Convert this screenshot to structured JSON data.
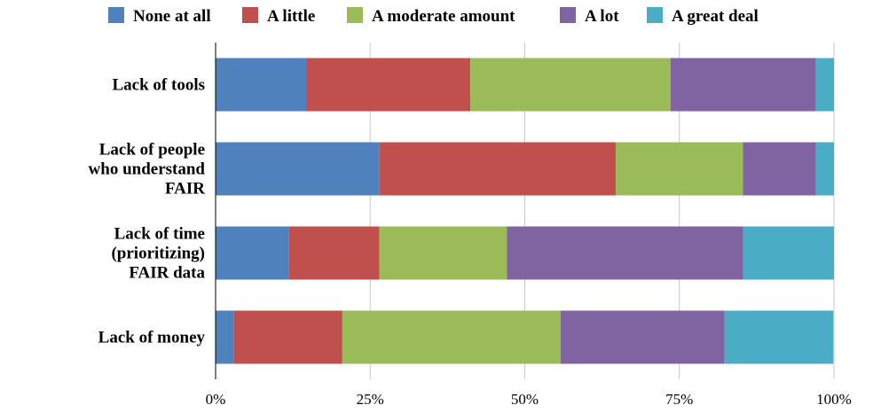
{
  "chart_data": {
    "type": "bar",
    "orientation": "horizontal",
    "stacked": true,
    "percent_stacked": true,
    "categories": [
      [
        "Lack of tools"
      ],
      [
        "Lack of people",
        "who understand",
        "FAIR"
      ],
      [
        "Lack of time",
        "(prioritizing)",
        "FAIR data"
      ],
      [
        "Lack of money"
      ]
    ],
    "series": [
      {
        "name": "None at all",
        "color": "#4f81bd",
        "values": [
          14.7,
          26.5,
          11.8,
          2.9
        ]
      },
      {
        "name": "A little",
        "color": "#c0504d",
        "values": [
          26.5,
          38.2,
          14.7,
          17.6
        ]
      },
      {
        "name": "A moderate amount",
        "color": "#9bbb59",
        "values": [
          32.4,
          20.6,
          20.6,
          35.3
        ]
      },
      {
        "name": "A lot",
        "color": "#8064a2",
        "values": [
          23.5,
          11.8,
          38.2,
          26.5
        ]
      },
      {
        "name": "A great deal",
        "color": "#4bacc6",
        "values": [
          2.9,
          2.9,
          14.7,
          17.6
        ]
      }
    ],
    "xlim": [
      0,
      100
    ],
    "xticks": [
      "0%",
      "25%",
      "50%",
      "75%",
      "100%"
    ],
    "grid": "vertical",
    "legend_position": "top"
  }
}
